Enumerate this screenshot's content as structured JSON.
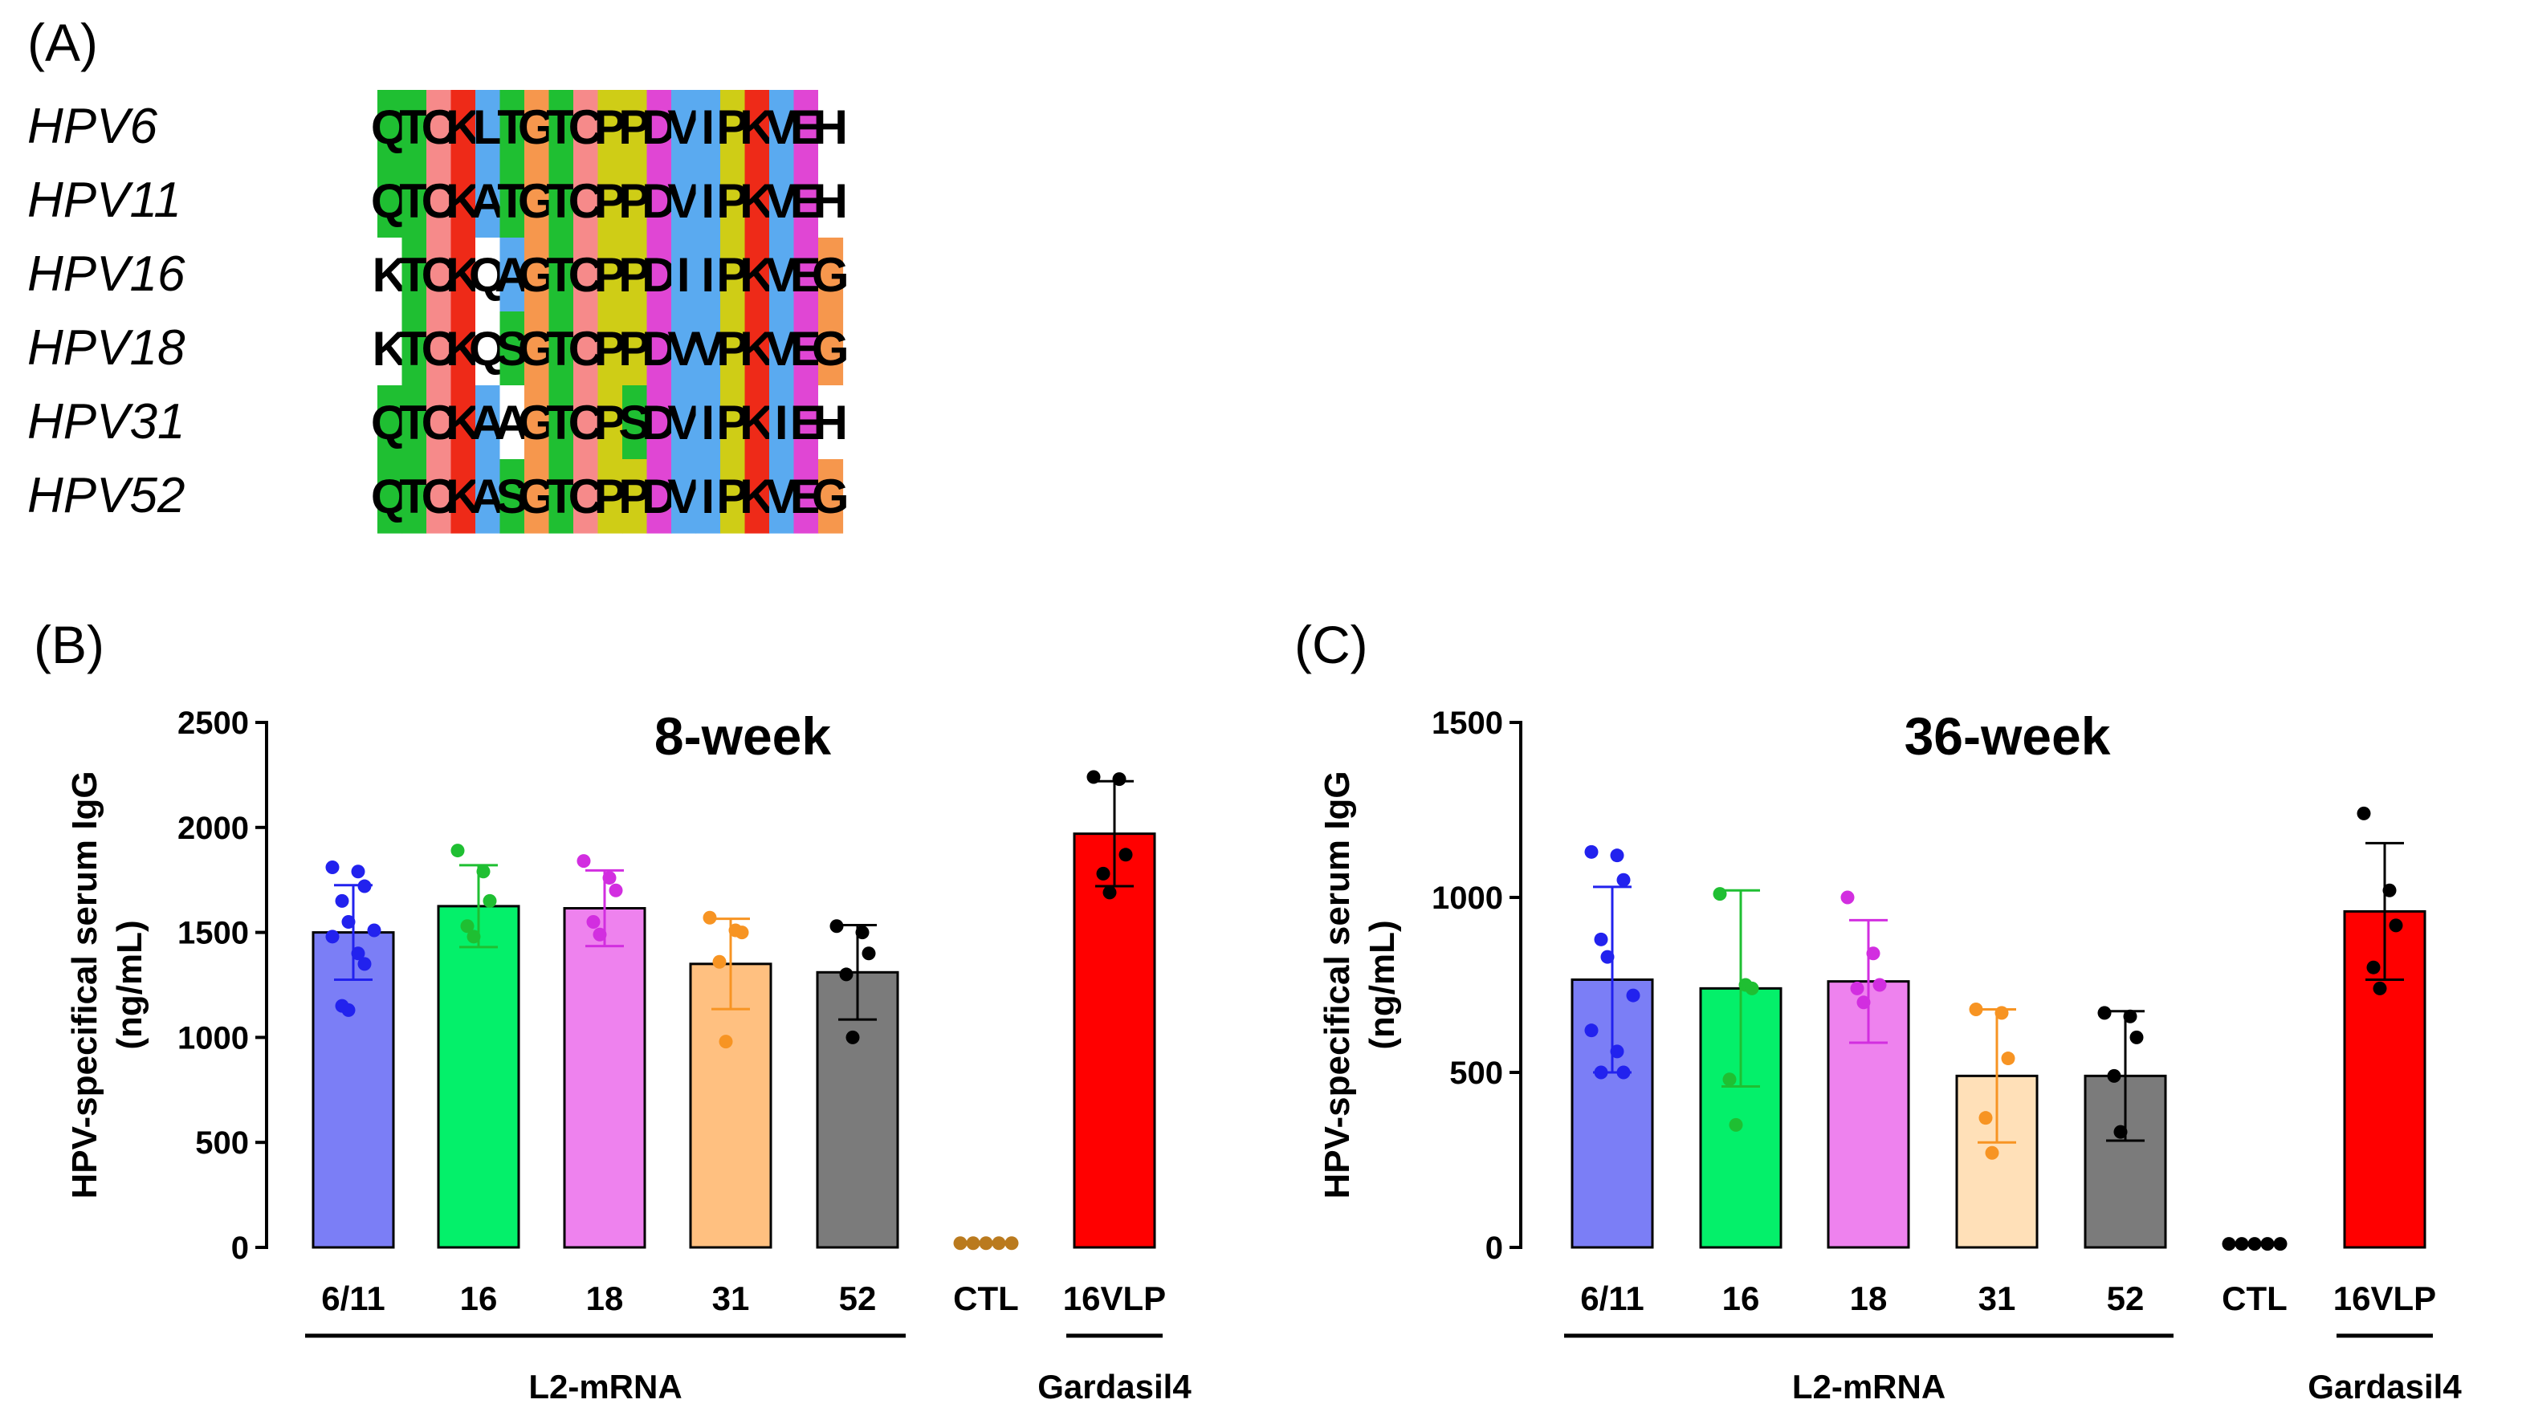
{
  "panels": {
    "a_label": "(A)",
    "b_label": "(B)",
    "c_label": "(C)"
  },
  "alignment": {
    "sequences": [
      {
        "name": "HPV6",
        "residues": "QTCKLTGTCPPDVIPKVEH"
      },
      {
        "name": "HPV11",
        "residues": "QTCKATGTCPPDVIPKVEH"
      },
      {
        "name": "HPV16",
        "residues": "KTCKQAGTCPPDIIPKVEG"
      },
      {
        "name": "HPV18",
        "residues": "KTCKQSGTCPPDVVPKVEG"
      },
      {
        "name": "HPV31",
        "residues": "QTCKAAGTCPSDVIPKIEH"
      },
      {
        "name": "HPV52",
        "residues": "QTCKASGTCPPDVIPKVEG"
      }
    ],
    "colors": {
      "Q": "#1fbf32",
      "T": "#1fbf32",
      "S": "#1fbf32",
      "C": "#f68a8a",
      "K": "#ee2a18",
      "L": "#5aaaf0",
      "A": "#5aaaf0",
      "V": "#5aaaf0",
      "I": "#5aaaf0",
      "G": "#f6974d",
      "P": "#cfcd16",
      "D": "#e046d4",
      "E": "#e046d4",
      "H": "#ffffff"
    },
    "uncolored": [
      [
        2,
        0
      ],
      [
        3,
        0
      ],
      [
        2,
        4
      ],
      [
        3,
        4
      ],
      [
        4,
        5
      ]
    ]
  },
  "chart_data": [
    {
      "type": "bar",
      "title": "8-week",
      "ylabel": "HPV-specifical serum IgG",
      "ylabel_units": "(ng/mL)",
      "ylim": [
        0,
        2500
      ],
      "yticks": [
        0,
        500,
        1000,
        1500,
        2000,
        2500
      ],
      "categories": [
        "6/11",
        "16",
        "18",
        "31",
        "52",
        "CTL",
        "16VLP"
      ],
      "values": [
        1500,
        1625,
        1615,
        1350,
        1310,
        0,
        1970
      ],
      "errors": [
        225,
        195,
        180,
        215,
        225,
        0,
        250
      ],
      "colors": [
        "#7b7ef6",
        "#04f06a",
        "#ee82ee",
        "#ffc080",
        "#7b7b7b",
        "#000000",
        "#ff0000"
      ],
      "point_colors": [
        "#2222ee",
        "#1fbf32",
        "#d22ee0",
        "#f79423",
        "#000000",
        "#ba7a1e",
        "#000000"
      ],
      "points": [
        [
          1810,
          1790,
          1720,
          1650,
          1550,
          1510,
          1480,
          1400,
          1350,
          1150,
          1130
        ],
        [
          1890,
          1790,
          1650,
          1530,
          1480
        ],
        [
          1840,
          1760,
          1700,
          1550,
          1490
        ],
        [
          1570,
          1510,
          1500,
          1360,
          980
        ],
        [
          1530,
          1500,
          1400,
          1300,
          1000
        ],
        [
          20,
          20,
          20,
          20,
          20
        ],
        [
          2240,
          2230,
          1870,
          1780,
          1690
        ]
      ],
      "groups": [
        {
          "label": "L2-mRNA",
          "from": 0,
          "to": 4
        },
        {
          "label": "Gardasil4",
          "from": 6,
          "to": 6
        }
      ]
    },
    {
      "type": "bar",
      "title": "36-week",
      "ylabel": "HPV-specifical serum IgG",
      "ylabel_units": "(ng/mL)",
      "ylim": [
        0,
        1500
      ],
      "yticks": [
        0,
        500,
        1000,
        1500
      ],
      "categories": [
        "6/11",
        "16",
        "18",
        "31",
        "52",
        "CTL",
        "16VLP"
      ],
      "values": [
        765,
        740,
        760,
        490,
        490,
        0,
        960
      ],
      "errors": [
        265,
        280,
        175,
        190,
        185,
        0,
        195
      ],
      "colors": [
        "#7b7ef6",
        "#04f06a",
        "#ee82ee",
        "#ffe0b8",
        "#7b7b7b",
        "#000000",
        "#ff0000"
      ],
      "point_colors": [
        "#2222ee",
        "#1fbf32",
        "#d22ee0",
        "#f79423",
        "#000000",
        "#000000",
        "#000000"
      ],
      "points": [
        [
          1130,
          1120,
          1050,
          880,
          830,
          720,
          620,
          560,
          500,
          500
        ],
        [
          1010,
          750,
          740,
          480,
          350
        ],
        [
          1000,
          840,
          750,
          740,
          700
        ],
        [
          680,
          670,
          540,
          370,
          270
        ],
        [
          670,
          660,
          600,
          490,
          330
        ],
        [
          10,
          10,
          10,
          10,
          10
        ],
        [
          1240,
          1020,
          920,
          800,
          740
        ]
      ],
      "groups": [
        {
          "label": "L2-mRNA",
          "from": 0,
          "to": 4
        },
        {
          "label": "Gardasil4",
          "from": 6,
          "to": 6
        }
      ]
    }
  ]
}
